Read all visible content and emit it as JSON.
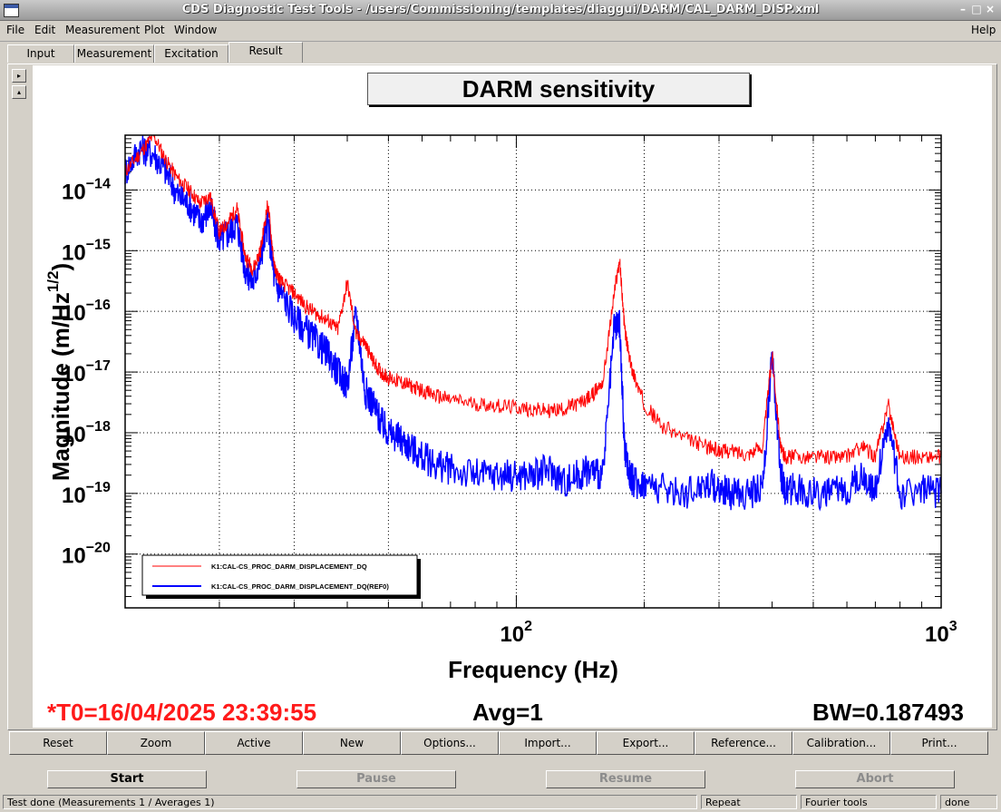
{
  "window": {
    "title": "CDS Diagnostic Test Tools - /users/Commissioning/templates/diaggui/DARM/CAL_DARM_DISP.xml",
    "buttons": [
      "–",
      "□",
      "×"
    ]
  },
  "menubar": {
    "items": [
      "File",
      "Edit",
      "Measurement",
      "Plot",
      "Window"
    ],
    "help": "Help"
  },
  "tabs": [
    {
      "label": "Input"
    },
    {
      "label": "Measurement"
    },
    {
      "label": "Excitation"
    },
    {
      "label": "Result",
      "active": true
    }
  ],
  "panel_arrows": {
    "right": "▸",
    "up": "▴"
  },
  "plot": {
    "title": "DARM sensitivity",
    "info": {
      "t0": "*T0=16/04/2025 23:39:55",
      "avg": "Avg=1",
      "bw": "BW=0.187493"
    },
    "colors": {
      "t0": "#ff1a1a",
      "series_current": "#ff0000",
      "series_ref": "#0000ff"
    }
  },
  "chart_data": {
    "type": "line",
    "title": "DARM sensitivity",
    "xlabel": "Frequency (Hz)",
    "ylabel": "Magnitude (m/Hz",
    "ylabel_sup": "1/2",
    "ylabel_end": ")",
    "xscale": "log",
    "yscale": "log",
    "xlim": [
      12,
      1000
    ],
    "ylim": [
      1.3e-21,
      8e-14
    ],
    "grid": true,
    "legend_position": "bottom-left",
    "x_ticks": [
      {
        "value": 100,
        "base": "10",
        "exp": "2"
      },
      {
        "value": 1000,
        "base": "10",
        "exp": "3"
      }
    ],
    "y_ticks": [
      {
        "value": 1e-14,
        "base": "10",
        "exp": "−14"
      },
      {
        "value": 1e-15,
        "base": "10",
        "exp": "−15"
      },
      {
        "value": 1e-16,
        "base": "10",
        "exp": "−16"
      },
      {
        "value": 1e-17,
        "base": "10",
        "exp": "−17"
      },
      {
        "value": 1e-18,
        "base": "10",
        "exp": "−18"
      },
      {
        "value": 1e-19,
        "base": "10",
        "exp": "−19"
      },
      {
        "value": 1e-20,
        "base": "10",
        "exp": "−20"
      }
    ],
    "series": [
      {
        "name": "K1:CAL-CS_PROC_DARM_DISPLACEMENT_DQ",
        "color": "#ff0000",
        "x": [
          12,
          13,
          14,
          15,
          16,
          17,
          18,
          19,
          20,
          21,
          22,
          23,
          24,
          25,
          26,
          27,
          28,
          30,
          32,
          34,
          36,
          38,
          40,
          42,
          44,
          46,
          48,
          50,
          53,
          56,
          60,
          65,
          70,
          80,
          90,
          100,
          110,
          120,
          130,
          140,
          150,
          160,
          170,
          175,
          180,
          185,
          190,
          200,
          220,
          250,
          280,
          300,
          320,
          350,
          380,
          400,
          420,
          430,
          450,
          500,
          550,
          600,
          650,
          700,
          750,
          800,
          900,
          1000
        ],
        "y": [
          2e-14,
          4e-14,
          8e-14,
          3e-14,
          1.5e-14,
          1e-14,
          6e-15,
          8e-15,
          2e-15,
          3e-15,
          5e-15,
          8e-16,
          5e-16,
          1e-15,
          6e-15,
          5e-16,
          3e-16,
          2e-16,
          1.2e-16,
          9e-17,
          7e-17,
          5e-17,
          3e-16,
          4e-17,
          3e-17,
          1.5e-17,
          1e-17,
          8e-18,
          7e-18,
          6e-18,
          5e-18,
          4e-18,
          3.5e-18,
          3e-18,
          2.8e-18,
          2.6e-18,
          2.4e-18,
          2.3e-18,
          2.5e-18,
          3e-18,
          4e-18,
          7e-18,
          2e-16,
          7e-16,
          5e-17,
          1.5e-17,
          8e-18,
          3e-18,
          1.3e-18,
          8e-19,
          6e-19,
          5e-19,
          5e-19,
          4.5e-19,
          6e-19,
          2e-17,
          5e-19,
          4e-19,
          4e-19,
          4e-19,
          4e-19,
          4e-19,
          6e-19,
          4e-19,
          3e-18,
          4e-19,
          4e-19,
          4e-19
        ]
      },
      {
        "name": "K1:CAL-CS_PROC_DARM_DISPLACEMENT_DQ(REF0)",
        "color": "#0000ff",
        "x": [
          12,
          13,
          14,
          15,
          16,
          17,
          18,
          19,
          20,
          21,
          22,
          23,
          24,
          25,
          26,
          27,
          28,
          30,
          32,
          34,
          36,
          38,
          40,
          42,
          44,
          46,
          48,
          50,
          53,
          56,
          60,
          65,
          70,
          80,
          90,
          100,
          110,
          120,
          130,
          140,
          150,
          160,
          170,
          175,
          180,
          185,
          190,
          200,
          220,
          250,
          280,
          300,
          320,
          350,
          380,
          400,
          420,
          430,
          450,
          500,
          550,
          600,
          650,
          700,
          750,
          800,
          900,
          1000
        ],
        "y": [
          2e-14,
          5e-14,
          4e-14,
          2e-14,
          8e-15,
          6e-15,
          3e-15,
          5e-15,
          1.5e-15,
          2e-15,
          3e-15,
          5e-16,
          3e-16,
          8e-16,
          3e-15,
          3e-16,
          2e-16,
          8e-17,
          5e-17,
          3e-17,
          2e-17,
          1e-17,
          6e-18,
          1e-16,
          5e-18,
          3e-18,
          1.5e-18,
          1e-18,
          8e-19,
          6e-19,
          4e-19,
          3e-19,
          2.5e-19,
          2e-19,
          2e-19,
          2e-19,
          2e-19,
          2.5e-19,
          1.5e-19,
          2e-19,
          2.5e-19,
          2e-19,
          5e-17,
          6e-17,
          5e-19,
          2e-19,
          1.5e-19,
          1.5e-19,
          1.2e-19,
          1e-19,
          1.5e-19,
          1.2e-19,
          1e-19,
          1e-19,
          1.2e-19,
          2e-17,
          2e-19,
          1e-19,
          1.2e-19,
          1e-19,
          1e-19,
          1.2e-19,
          2e-19,
          1.2e-19,
          1.5e-18,
          1e-19,
          1.2e-19,
          1e-19
        ]
      }
    ]
  },
  "toolbar": {
    "buttons": [
      "Reset",
      "Zoom",
      "Active",
      "New",
      "Options...",
      "Import...",
      "Export...",
      "Reference...",
      "Calibration...",
      "Print..."
    ]
  },
  "controls": {
    "start": "Start",
    "pause": "Pause",
    "resume": "Resume",
    "abort": "Abort"
  },
  "status": {
    "message": "Test done (Measurements 1 / Averages 1)",
    "mode": "Repeat",
    "tools": "Fourier tools",
    "state": "done"
  }
}
